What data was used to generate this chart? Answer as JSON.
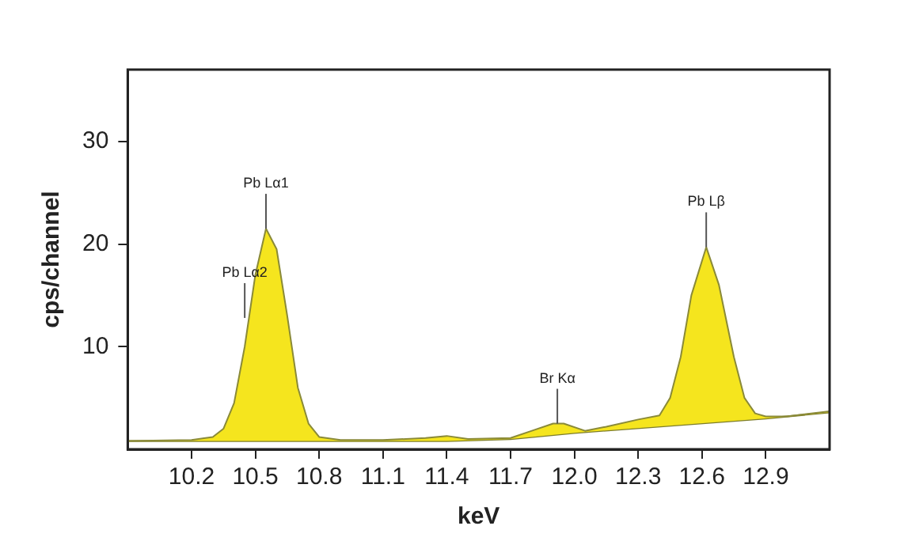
{
  "chart_data": {
    "type": "area",
    "xlabel": "keV",
    "ylabel": "cps/channel",
    "xlim": [
      9.9,
      13.2
    ],
    "ylim": [
      0,
      37
    ],
    "xticks": [
      10.2,
      10.5,
      10.8,
      11.1,
      11.4,
      11.7,
      {
        "value": 12.0,
        "label": "12.0"
      },
      12.3,
      12.6,
      12.9
    ],
    "yticks": [
      10,
      20,
      30
    ],
    "grid": false,
    "legend": false,
    "series": [
      {
        "color": "#f5e51e",
        "x": [
          9.9,
          10.2,
          10.3,
          10.35,
          10.4,
          10.45,
          10.5,
          10.55,
          10.6,
          10.65,
          10.7,
          10.75,
          10.8,
          10.9,
          11.1,
          11.3,
          11.4,
          11.5,
          11.7,
          11.8,
          11.9,
          11.95,
          12.05,
          12.15,
          12.3,
          12.4,
          12.45,
          12.5,
          12.55,
          12.62,
          12.68,
          12.75,
          12.8,
          12.85,
          12.9,
          13.0,
          13.2
        ],
        "values": [
          0.8,
          0.9,
          1.2,
          2,
          4.5,
          10,
          17,
          21.5,
          19.5,
          13,
          6,
          2.5,
          1.2,
          0.9,
          0.9,
          1.1,
          1.3,
          1.0,
          1.1,
          1.8,
          2.5,
          2.5,
          1.8,
          2.2,
          2.9,
          3.3,
          5,
          9,
          15,
          19.7,
          16,
          9,
          5,
          3.5,
          3.2,
          3.2,
          3.7
        ]
      },
      {
        "type": "line",
        "color": "#7d7d2a",
        "x": [
          9.9,
          11.4,
          11.7,
          12.0,
          12.9,
          13.2
        ],
        "values": [
          0.8,
          0.8,
          1.0,
          1.6,
          3.0,
          3.6
        ]
      }
    ],
    "annotations": [
      {
        "text": "Pb Lα1",
        "x": 10.55,
        "y": 21.5
      },
      {
        "text": "Pb Lα2",
        "x": 10.45,
        "y": 12.8
      },
      {
        "text": "Br Kα",
        "x": 11.92,
        "y": 2.5
      },
      {
        "text": "Pb Lβ",
        "x": 12.62,
        "y": 19.7
      }
    ]
  }
}
